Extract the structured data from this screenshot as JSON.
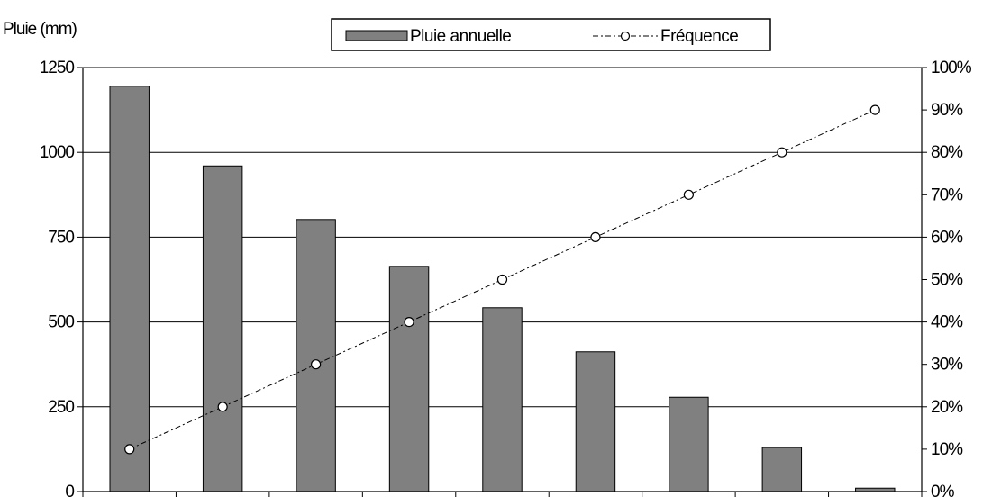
{
  "chart_data": {
    "type": "bar",
    "ylabel": "Pluie (mm)",
    "ylim": [
      0,
      1250
    ],
    "yticks": [
      "0",
      "250",
      "500",
      "750",
      "1000",
      "1250"
    ],
    "y2lim": [
      0,
      100
    ],
    "y2ticks": [
      "0%",
      "10%",
      "20%",
      "30%",
      "40%",
      "50%",
      "60%",
      "70%",
      "80%",
      "90%",
      "100%"
    ],
    "grid": true,
    "legend_position": "top-center",
    "series": [
      {
        "name": "Pluie annuelle",
        "type": "bar",
        "axis": "left",
        "color": "#808080",
        "values": [
          1195,
          960,
          802,
          664,
          542,
          412,
          278,
          130,
          10
        ]
      },
      {
        "name": "Fréquence",
        "type": "line",
        "axis": "right",
        "line_style": "dash-dot",
        "marker": "open-circle",
        "values": [
          10,
          20,
          30,
          40,
          50,
          60,
          70,
          80,
          90
        ]
      }
    ]
  }
}
